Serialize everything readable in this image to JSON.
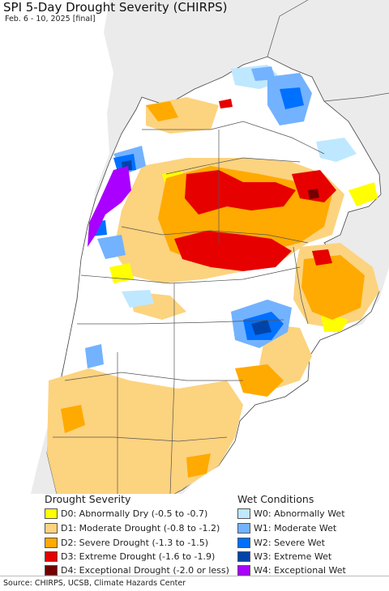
{
  "title": "SPI 5-Day Drought Severity (CHIRPS)",
  "subtitle": "Feb. 6 - 10, 2025 [final]",
  "legend_drought": {
    "heading": "Drought Severity",
    "items": [
      {
        "label": "D0: Abnormally Dry (-0.5 to -0.7)",
        "color": "#ffff00"
      },
      {
        "label": "D1: Moderate Drought (-0.8 to -1.2)",
        "color": "#fcd37f"
      },
      {
        "label": "D2: Severe Drought (-1.3 to -1.5)",
        "color": "#ffaa00"
      },
      {
        "label": "D3: Extreme Drought (-1.6 to -1.9)",
        "color": "#e60000"
      },
      {
        "label": "D4: Exceptional Drought (-2.0 or less)",
        "color": "#730000"
      }
    ]
  },
  "legend_wet": {
    "heading": "Wet Conditions",
    "items": [
      {
        "label": "W0: Abnormally Wet",
        "color": "#bee8ff"
      },
      {
        "label": "W1: Moderate Wet",
        "color": "#73b2ff"
      },
      {
        "label": "W2: Severe Wet",
        "color": "#0070ff"
      },
      {
        "label": "W3: Extreme Wet",
        "color": "#0044aa"
      },
      {
        "label": "W4: Exceptional Wet",
        "color": "#aa00ff"
      }
    ]
  },
  "source": "Source: CHIRPS, UCSB, Climate Hazards Center",
  "colors": {
    "ocean": "#ffffff",
    "outside_land": "#ebebeb",
    "normal": "#ffffff",
    "border": "#555555"
  }
}
